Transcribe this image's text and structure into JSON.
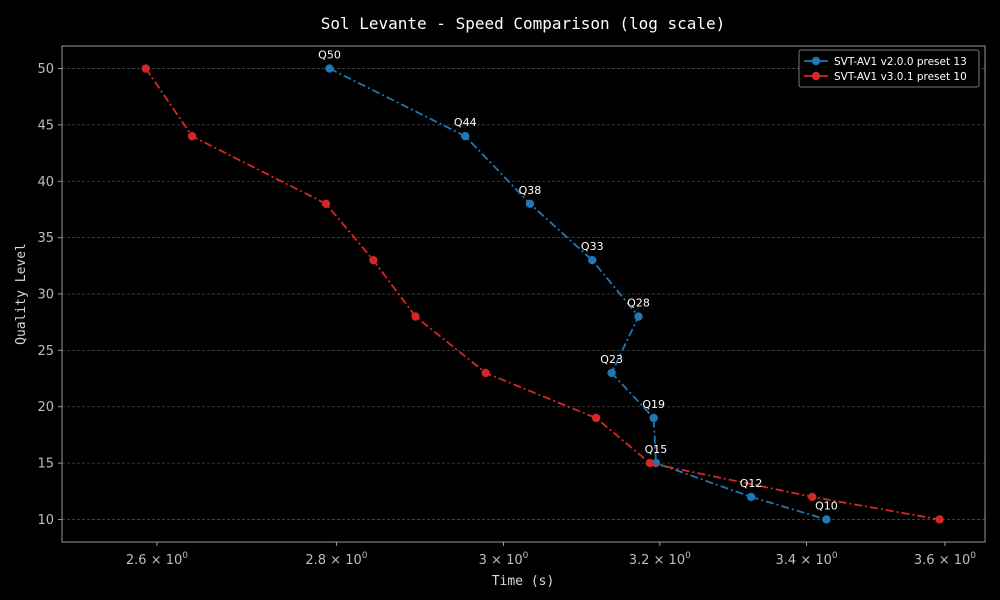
{
  "chart_data": {
    "type": "line",
    "title": "Sol Levante - Speed Comparison (log scale)",
    "xlabel": "Time (s)",
    "ylabel": "Quality Level",
    "xscale": "log",
    "xlim": [
      2.5,
      3.66
    ],
    "ylim": [
      8,
      52
    ],
    "grid": "y-dashed",
    "legend_position": "top-right",
    "xticks": [
      {
        "value": 2.6,
        "base": "2.6",
        "exp": "0"
      },
      {
        "value": 2.8,
        "base": "2.8",
        "exp": "0"
      },
      {
        "value": 3.0,
        "base": "3",
        "exp": "0"
      },
      {
        "value": 3.2,
        "base": "3.2",
        "exp": "0"
      },
      {
        "value": 3.4,
        "base": "3.4",
        "exp": "0"
      },
      {
        "value": 3.6,
        "base": "3.6",
        "exp": "0"
      }
    ],
    "yticks": [
      10,
      15,
      20,
      25,
      30,
      35,
      40,
      45,
      50
    ],
    "series": [
      {
        "name": "SVT-AV1 v2.0.0 preset 13",
        "color": "#1f77b4",
        "points": [
          {
            "x": 2.792,
            "y": 50
          },
          {
            "x": 2.953,
            "y": 44
          },
          {
            "x": 3.033,
            "y": 38
          },
          {
            "x": 3.112,
            "y": 33
          },
          {
            "x": 3.172,
            "y": 28
          },
          {
            "x": 3.137,
            "y": 23
          },
          {
            "x": 3.192,
            "y": 19
          },
          {
            "x": 3.195,
            "y": 15
          },
          {
            "x": 3.323,
            "y": 12
          },
          {
            "x": 3.428,
            "y": 10
          }
        ]
      },
      {
        "name": "SVT-AV1 v3.0.1 preset 10",
        "color": "#d62728",
        "points": [
          {
            "x": 2.588,
            "y": 50
          },
          {
            "x": 2.638,
            "y": 44
          },
          {
            "x": 2.788,
            "y": 38
          },
          {
            "x": 2.843,
            "y": 33
          },
          {
            "x": 2.893,
            "y": 28
          },
          {
            "x": 2.978,
            "y": 23
          },
          {
            "x": 3.117,
            "y": 19
          },
          {
            "x": 3.187,
            "y": 15
          },
          {
            "x": 3.408,
            "y": 12
          },
          {
            "x": 3.592,
            "y": 10
          }
        ]
      }
    ],
    "annotations": [
      {
        "text": "Q50",
        "x": 2.792,
        "y": 50
      },
      {
        "text": "Q44",
        "x": 2.953,
        "y": 44
      },
      {
        "text": "Q38",
        "x": 3.033,
        "y": 38
      },
      {
        "text": "Q33",
        "x": 3.112,
        "y": 33
      },
      {
        "text": "Q28",
        "x": 3.172,
        "y": 28
      },
      {
        "text": "Q23",
        "x": 3.137,
        "y": 23
      },
      {
        "text": "Q19",
        "x": 3.192,
        "y": 19
      },
      {
        "text": "Q15",
        "x": 3.195,
        "y": 15
      },
      {
        "text": "Q12",
        "x": 3.323,
        "y": 12
      },
      {
        "text": "Q10",
        "x": 3.428,
        "y": 10
      }
    ]
  }
}
